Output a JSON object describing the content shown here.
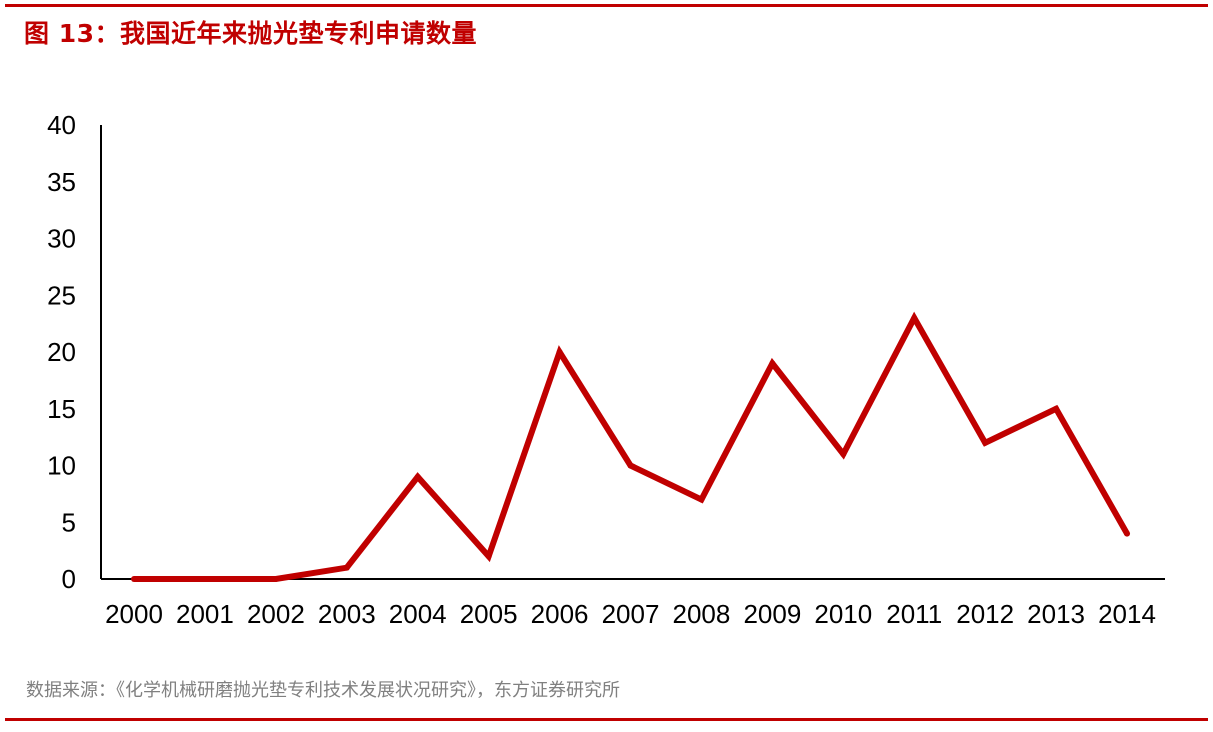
{
  "figure": {
    "title": "图 13：我国近年来抛光垫专利申请数量",
    "source": "数据来源：《化学机械研磨抛光垫专利技术发展状况研究》，东方证券研究所"
  },
  "colors": {
    "accent": "#c00000",
    "line": "#c00000",
    "axis": "#000000",
    "source_text": "#808080"
  },
  "chart_data": {
    "type": "line",
    "title": "",
    "xlabel": "",
    "ylabel": "",
    "categories": [
      "2000",
      "2001",
      "2002",
      "2003",
      "2004",
      "2005",
      "2006",
      "2007",
      "2008",
      "2009",
      "2010",
      "2011",
      "2012",
      "2013",
      "2014"
    ],
    "series": [
      {
        "values": [
          0,
          0,
          0,
          1,
          9,
          2,
          20,
          10,
          7,
          19,
          11,
          23,
          12,
          15,
          4
        ]
      }
    ],
    "ylim": [
      0,
      40
    ],
    "yticks": [
      "0",
      "5",
      "10",
      "15",
      "20",
      "25",
      "30",
      "35",
      "40"
    ],
    "grid": false,
    "legend": "none"
  }
}
